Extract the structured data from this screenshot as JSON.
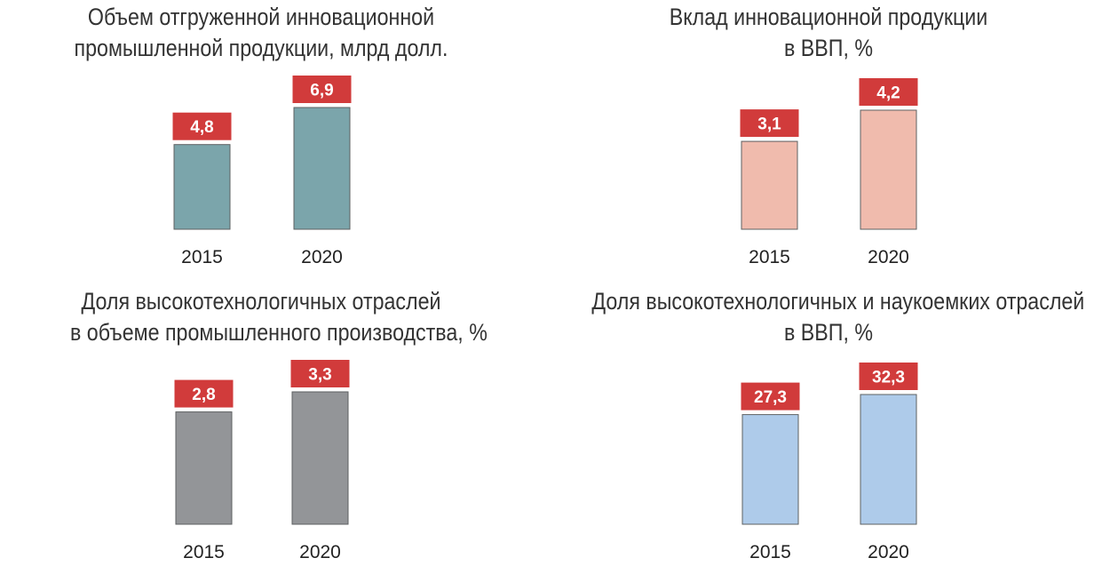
{
  "chart_data": [
    {
      "type": "bar",
      "title": [
        "Объем отгруженной инновационной",
        "промышленной продукции, млрд долл."
      ],
      "categories": [
        "2015",
        "2020"
      ],
      "values": [
        4.8,
        6.9
      ],
      "value_labels": [
        "4,8",
        "6,9"
      ],
      "bar_color": "#7ba5ab",
      "label_color": "#d13b3b"
    },
    {
      "type": "bar",
      "title": [
        "Вклад инновационной продукции",
        "в ВВП, %"
      ],
      "categories": [
        "2015",
        "2020"
      ],
      "values": [
        3.1,
        4.2
      ],
      "value_labels": [
        "3,1",
        "4,2"
      ],
      "bar_color": "#f0bbad",
      "label_color": "#d13b3b"
    },
    {
      "type": "bar",
      "title": [
        "Доля высокотехнологичных отраслей",
        "в объеме промышленного производства, %"
      ],
      "categories": [
        "2015",
        "2020"
      ],
      "values": [
        2.8,
        3.3
      ],
      "value_labels": [
        "2,8",
        "3,3"
      ],
      "bar_color": "#939598",
      "label_color": "#d13b3b"
    },
    {
      "type": "bar",
      "title": [
        "Доля высокотехнологичных и наукоемких отраслей",
        "в ВВП, %"
      ],
      "categories": [
        "2015",
        "2020"
      ],
      "values": [
        27.3,
        32.3
      ],
      "value_labels": [
        "27,3",
        "32,3"
      ],
      "bar_color": "#aecbea",
      "label_color": "#d13b3b"
    }
  ]
}
